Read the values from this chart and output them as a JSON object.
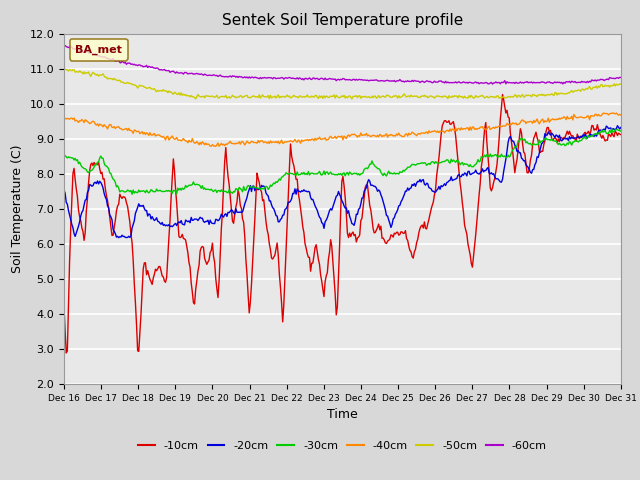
{
  "title": "Sentek Soil Temperature profile",
  "xlabel": "Time",
  "ylabel": "Soil Temperature (C)",
  "ylim": [
    2.0,
    12.0
  ],
  "yticks": [
    2.0,
    3.0,
    4.0,
    5.0,
    6.0,
    7.0,
    8.0,
    9.0,
    10.0,
    11.0,
    12.0
  ],
  "background_color": "#d8d8d8",
  "plot_bg_color": "#e8e8e8",
  "grid_color": "white",
  "legend_label": "BA_met",
  "series_colors": {
    "-10cm": "#dd0000",
    "-20cm": "#0000dd",
    "-30cm": "#00cc00",
    "-40cm": "#ff8800",
    "-50cm": "#cccc00",
    "-60cm": "#aa00cc"
  },
  "x_start": 16,
  "x_end": 31,
  "x_ticks": [
    16,
    17,
    18,
    19,
    20,
    21,
    22,
    23,
    24,
    25,
    26,
    27,
    28,
    29,
    30,
    31
  ],
  "x_tick_labels": [
    "Dec 16",
    "Dec 17",
    "Dec 18",
    "Dec 19",
    "Dec 20",
    "Dec 21",
    "Dec 22",
    "Dec 23",
    "Dec 24",
    "Dec 25",
    "Dec 26",
    "Dec 27",
    "Dec 28",
    "Dec 29",
    "Dec 30",
    "Dec 31"
  ],
  "figsize": [
    6.4,
    4.8
  ],
  "dpi": 100
}
